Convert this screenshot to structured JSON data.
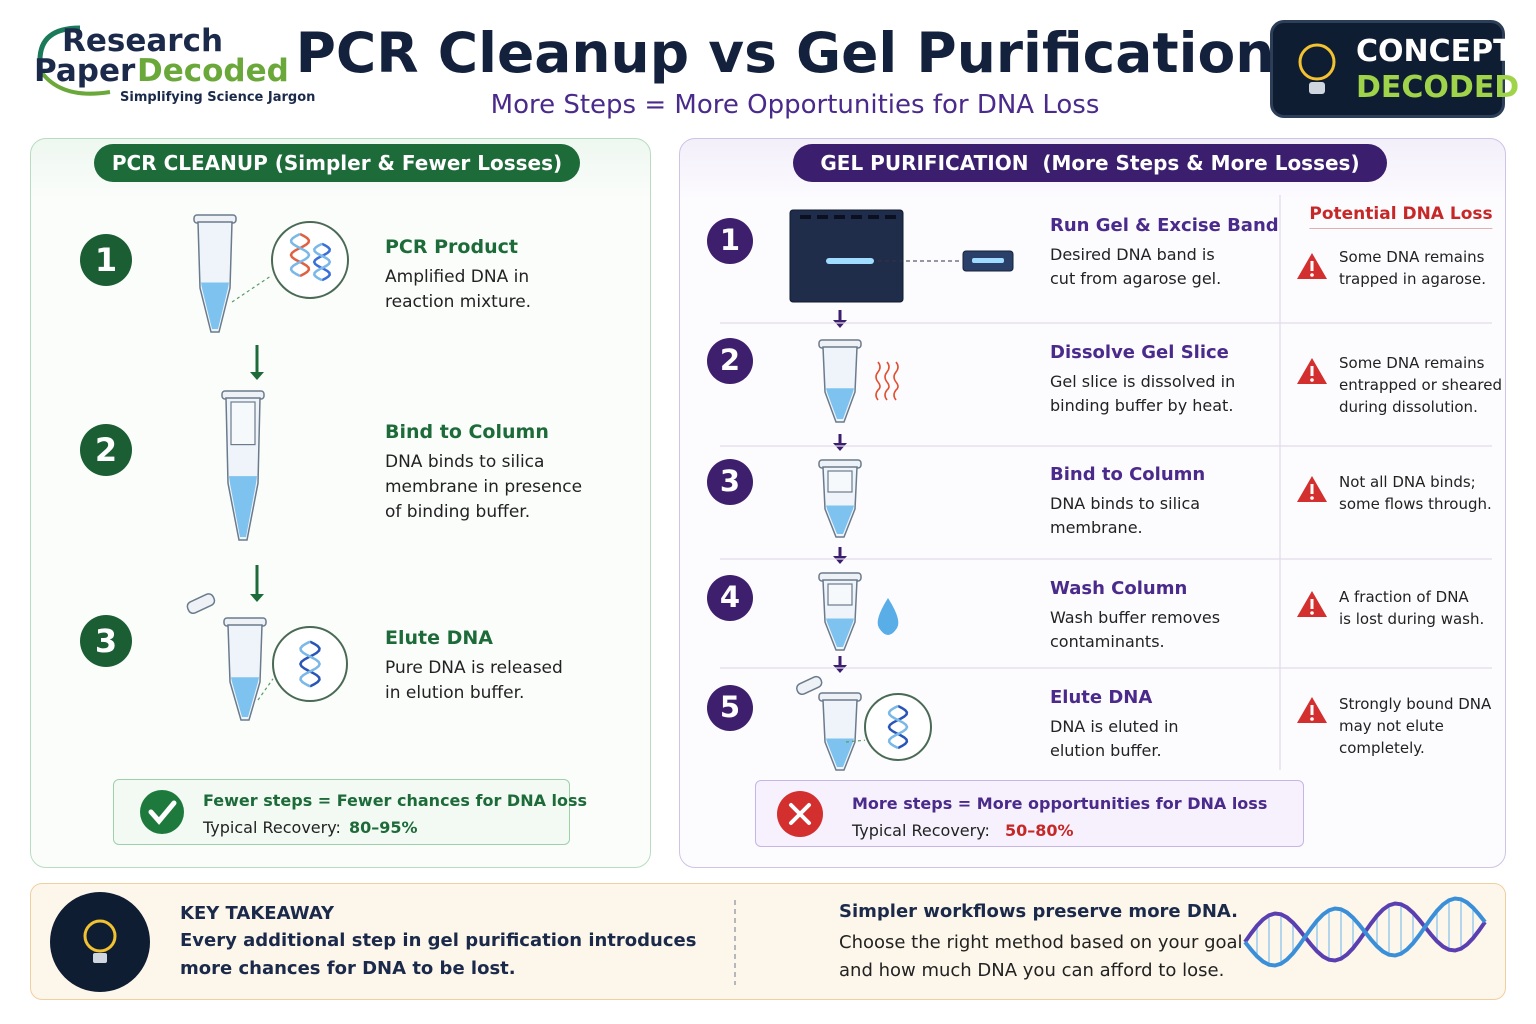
{
  "header": {
    "logo": {
      "word1": "Research",
      "word2": "Paper",
      "word3": "Decoded",
      "tagline": "Simplifying Science Jargon"
    },
    "title": "PCR Cleanup vs Gel Purification",
    "subtitle": "More Steps = More Opportunities for DNA Loss",
    "badge": {
      "line1": "CONCEPT",
      "line2": "DECODED"
    }
  },
  "left": {
    "title": "PCR CLEANUP (Simpler & Fewer Losses)",
    "steps": [
      {
        "number": 1,
        "title": "PCR Product",
        "lines": [
          "Amplified DNA in",
          "reaction mixture."
        ]
      },
      {
        "number": 2,
        "title": "Bind to Column",
        "lines": [
          "DNA binds to silica",
          "membrane in presence",
          "of binding buffer."
        ]
      },
      {
        "number": 3,
        "title": "Elute DNA",
        "lines": [
          "Pure DNA is released",
          "in elution buffer."
        ]
      }
    ],
    "summary": {
      "title": "Fewer steps = Fewer chances for DNA loss",
      "label": "Typical Recovery:",
      "value": "80–95%"
    }
  },
  "right": {
    "title": "GEL PURIFICATION  (More Steps & More Losses)",
    "loss_header": "Potential DNA Loss",
    "steps": [
      {
        "number": 1,
        "title": "Run Gel & Excise Band",
        "lines": [
          "Desired DNA band is",
          "cut from agarose gel."
        ],
        "loss": [
          "Some DNA remains",
          "trapped in agarose."
        ]
      },
      {
        "number": 2,
        "title": "Dissolve Gel Slice",
        "lines": [
          "Gel slice is dissolved in",
          "binding buffer by heat."
        ],
        "loss": [
          "Some DNA remains",
          "entrapped or sheared",
          "during dissolution."
        ]
      },
      {
        "number": 3,
        "title": "Bind to Column",
        "lines": [
          "DNA binds to silica",
          "membrane."
        ],
        "loss": [
          "Not all DNA binds;",
          "some flows through."
        ]
      },
      {
        "number": 4,
        "title": "Wash Column",
        "lines": [
          "Wash buffer removes",
          "contaminants."
        ],
        "loss": [
          "A fraction of DNA",
          "is lost during wash."
        ]
      },
      {
        "number": 5,
        "title": "Elute DNA",
        "lines": [
          "DNA is eluted in",
          "elution buffer."
        ],
        "loss": [
          "Strongly bound DNA",
          "may not elute",
          "completely."
        ]
      }
    ],
    "summary": {
      "title": "More steps = More opportunities for DNA loss",
      "label": "Typical Recovery:",
      "value": "50–80%"
    }
  },
  "takeaway": {
    "heading": "KEY TAKEAWAY",
    "lines": [
      "Every additional step in gel purification introduces",
      "more chances for DNA to be lost."
    ],
    "right_heading": "Simpler workflows preserve more DNA.",
    "right_lines": [
      "Choose the right method based on your goal",
      "and how much DNA you can afford to lose."
    ]
  }
}
